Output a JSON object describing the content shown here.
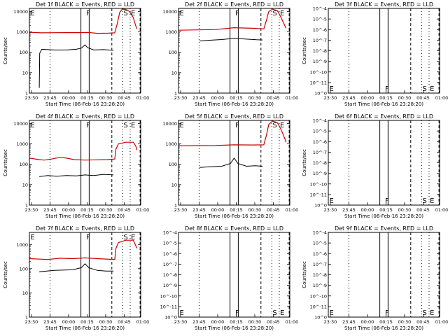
{
  "colors": {
    "events": "#000000",
    "lld": "#cc0000",
    "background": "#ffffff"
  },
  "chart_data": [
    {
      "type": "line",
      "title": "Det 1f BLACK = Events, RED = LLD",
      "xlabel": "Start Time (06-Feb-16 23:28:20)",
      "ylabel": "Counts/sec",
      "scale": "log",
      "yticks": [
        "1",
        "10",
        "100",
        "1000",
        "10000"
      ],
      "xticks": [
        "23:30",
        "23:45",
        "00:00",
        "00:15",
        "00:30",
        "00:45",
        "01:00"
      ],
      "markers": [
        {
          "label": "E",
          "t": 0.25
        },
        {
          "label": "F",
          "t": 45.25
        },
        {
          "label": "S",
          "t": 75.5
        },
        {
          "label": "E",
          "t": 81.5
        }
      ],
      "series": [
        {
          "name": "Events",
          "color": "#000000",
          "points": [
            [
              8,
              1.8
            ],
            [
              8.3,
              90
            ],
            [
              10,
              140
            ],
            [
              20,
              130
            ],
            [
              30,
              130
            ],
            [
              38,
              140
            ],
            [
              42,
              160
            ],
            [
              45,
              230
            ],
            [
              47,
              170
            ],
            [
              52,
              130
            ],
            [
              60,
              135
            ],
            [
              68,
              125
            ]
          ]
        },
        {
          "name": "LLD",
          "color": "#cc0000",
          "points": [
            [
              0,
              950
            ],
            [
              10,
              900
            ],
            [
              20,
              910
            ],
            [
              30,
              920
            ],
            [
              40,
              920
            ],
            [
              48,
              930
            ],
            [
              55,
              850
            ],
            [
              64,
              860
            ],
            [
              69,
              900
            ],
            [
              71,
              2400
            ],
            [
              73,
              9000
            ],
            [
              75,
              13000
            ],
            [
              78,
              12500
            ],
            [
              81,
              10000
            ],
            [
              84,
              5000
            ],
            [
              86,
              2000
            ],
            [
              87,
              1400
            ]
          ]
        }
      ]
    },
    {
      "type": "line",
      "title": "Det 2f BLACK = Events, RED = LLD",
      "xlabel": "Start Time (06-Feb-16 23:28:20)",
      "ylabel": "",
      "scale": "log",
      "yticks": [
        "1",
        "10",
        "100",
        "1000",
        "10000"
      ],
      "xticks": [
        "23:30",
        "23:45",
        "00:00",
        "00:15",
        "00:30",
        "00:45",
        "01:00"
      ],
      "markers": [
        {
          "label": "E",
          "t": 0.25
        },
        {
          "label": "F",
          "t": 45.25
        },
        {
          "label": "S",
          "t": 75.5
        },
        {
          "label": "E",
          "t": 81.5
        }
      ],
      "series": [
        {
          "name": "Events",
          "color": "#000000",
          "points": [
            [
              17,
              360
            ],
            [
              25,
              390
            ],
            [
              35,
              420
            ],
            [
              45,
              480
            ],
            [
              55,
              440
            ],
            [
              63,
              410
            ],
            [
              68,
              400
            ]
          ]
        },
        {
          "name": "LLD",
          "color": "#cc0000",
          "points": [
            [
              0,
              1200
            ],
            [
              15,
              1250
            ],
            [
              30,
              1300
            ],
            [
              45,
              1600
            ],
            [
              60,
              1500
            ],
            [
              69,
              1400
            ],
            [
              71,
              3500
            ],
            [
              73,
              10000
            ],
            [
              76,
              13000
            ],
            [
              80,
              11000
            ],
            [
              83,
              5000
            ],
            [
              86,
              2000
            ],
            [
              87,
              1500
            ]
          ]
        }
      ]
    },
    {
      "type": "line",
      "title": "Det 3f BLACK = Events, RED = LLD",
      "xlabel": "Start Time (06-Feb-16 23:28:20)",
      "ylabel": "Counts/sec",
      "scale": "sci",
      "yticks": [
        "10^0",
        "10^-11",
        "10^-10",
        "10^-9",
        "10^-8",
        "10^-7",
        "10^-6",
        "10^-5",
        "10^-4"
      ],
      "xticks": [
        "23:30",
        "23:45",
        "00:00",
        "00:15",
        "00:30",
        "00:45",
        "01:00"
      ],
      "markers": [
        {
          "label": "E",
          "t": 0.25
        },
        {
          "label": "F",
          "t": 45.25
        },
        {
          "label": "S",
          "t": 75.5
        },
        {
          "label": "E",
          "t": 81.5
        }
      ],
      "series": []
    },
    {
      "type": "line",
      "title": "Det 4f BLACK = Events, RED = LLD",
      "xlabel": "Start Time (06-Feb-16 23:28:20)",
      "ylabel": "Counts/sec",
      "scale": "log",
      "yticks": [
        "1",
        "10",
        "100",
        "1000",
        "10000"
      ],
      "xticks": [
        "23:30",
        "23:45",
        "00:00",
        "00:15",
        "00:30",
        "00:45",
        "01:00"
      ],
      "markers": [
        {
          "label": "E",
          "t": 0.25
        },
        {
          "label": "F",
          "t": 45.25
        },
        {
          "label": "S",
          "t": 75.5
        },
        {
          "label": "E",
          "t": 81.5
        }
      ],
      "series": [
        {
          "name": "Events",
          "color": "#000000",
          "points": [
            [
              8,
              25
            ],
            [
              15,
              28
            ],
            [
              22,
              26
            ],
            [
              30,
              28
            ],
            [
              38,
              27
            ],
            [
              45,
              30
            ],
            [
              52,
              28
            ],
            [
              60,
              32
            ],
            [
              68,
              30
            ]
          ]
        },
        {
          "name": "LLD",
          "color": "#cc0000",
          "points": [
            [
              0,
              200
            ],
            [
              8,
              170
            ],
            [
              12,
              160
            ],
            [
              18,
              180
            ],
            [
              25,
              220
            ],
            [
              30,
              200
            ],
            [
              36,
              170
            ],
            [
              45,
              160
            ],
            [
              55,
              165
            ],
            [
              63,
              170
            ],
            [
              69,
              180
            ],
            [
              70,
              550
            ],
            [
              72,
              1000
            ],
            [
              78,
              1200
            ],
            [
              84,
              1200
            ],
            [
              86,
              800
            ],
            [
              87,
              500
            ]
          ]
        }
      ]
    },
    {
      "type": "line",
      "title": "Det 5f BLACK = Events, RED = LLD",
      "xlabel": "Start Time (06-Feb-16 23:28:20)",
      "ylabel": "",
      "scale": "log",
      "yticks": [
        "1",
        "10",
        "100",
        "1000",
        "10000"
      ],
      "xticks": [
        "23:30",
        "23:45",
        "00:00",
        "00:15",
        "00:30",
        "00:45",
        "01:00"
      ],
      "markers": [
        {
          "label": "E",
          "t": 0.25
        },
        {
          "label": "F",
          "t": 45.25
        },
        {
          "label": "S",
          "t": 75.5
        },
        {
          "label": "E",
          "t": 81.5
        }
      ],
      "series": [
        {
          "name": "Events",
          "color": "#000000",
          "points": [
            [
              17,
              70
            ],
            [
              25,
              75
            ],
            [
              35,
              80
            ],
            [
              42,
              110
            ],
            [
              45,
              200
            ],
            [
              48,
              110
            ],
            [
              55,
              80
            ],
            [
              62,
              85
            ],
            [
              68,
              80
            ]
          ]
        },
        {
          "name": "LLD",
          "color": "#cc0000",
          "points": [
            [
              0,
              800
            ],
            [
              15,
              820
            ],
            [
              30,
              830
            ],
            [
              45,
              900
            ],
            [
              60,
              880
            ],
            [
              69,
              900
            ],
            [
              71,
              2500
            ],
            [
              73,
              9000
            ],
            [
              76,
              13000
            ],
            [
              80,
              11000
            ],
            [
              83,
              5000
            ],
            [
              86,
              1800
            ],
            [
              87,
              1200
            ]
          ]
        }
      ]
    },
    {
      "type": "line",
      "title": "Det 6f BLACK = Events, RED = LLD",
      "xlabel": "Start Time (06-Feb-16 23:28:20)",
      "ylabel": "Counts/sec",
      "scale": "sci",
      "yticks": [
        "10^0",
        "10^-11",
        "10^-10",
        "10^-9",
        "10^-8",
        "10^-7",
        "10^-6",
        "10^-5",
        "10^-4"
      ],
      "xticks": [
        "23:30",
        "23:45",
        "00:00",
        "00:15",
        "00:30",
        "00:45",
        "01:00"
      ],
      "markers": [
        {
          "label": "E",
          "t": 0.25
        },
        {
          "label": "F",
          "t": 45.25
        },
        {
          "label": "S",
          "t": 75.5
        },
        {
          "label": "E",
          "t": 81.5
        }
      ],
      "series": []
    },
    {
      "type": "line",
      "title": "Det 7f BLACK = Events, RED = LLD",
      "xlabel": "Start Time (06-Feb-16 23:28:20)",
      "ylabel": "Counts/sec",
      "scale": "log",
      "yticks": [
        "1",
        "10",
        "100",
        "1000"
      ],
      "xticks": [
        "23:30",
        "23:45",
        "00:00",
        "00:15",
        "00:30",
        "00:45",
        "01:00"
      ],
      "markers": [
        {
          "label": "E",
          "t": 0.25
        },
        {
          "label": "F",
          "t": 45.25
        },
        {
          "label": "S",
          "t": 75.5
        },
        {
          "label": "E",
          "t": 81.5
        }
      ],
      "series": [
        {
          "name": "Events",
          "color": "#000000",
          "points": [
            [
              8,
              75
            ],
            [
              20,
              85
            ],
            [
              35,
              90
            ],
            [
              42,
              110
            ],
            [
              45,
              160
            ],
            [
              48,
              110
            ],
            [
              55,
              85
            ],
            [
              62,
              80
            ],
            [
              68,
              80
            ]
          ]
        },
        {
          "name": "LLD",
          "color": "#cc0000",
          "points": [
            [
              0,
              260
            ],
            [
              15,
              240
            ],
            [
              25,
              270
            ],
            [
              35,
              260
            ],
            [
              45,
              280
            ],
            [
              55,
              260
            ],
            [
              69,
              240
            ],
            [
              70,
              700
            ],
            [
              72,
              1200
            ],
            [
              78,
              1500
            ],
            [
              84,
              1500
            ],
            [
              86,
              900
            ],
            [
              87,
              700
            ]
          ]
        }
      ]
    },
    {
      "type": "line",
      "title": "Det 8f BLACK = Events, RED = LLD",
      "xlabel": "Start Time (06-Feb-16 23:28:20)",
      "ylabel": "",
      "scale": "sci",
      "yticks": [
        "10^0",
        "10^-11",
        "10^-10",
        "10^-9",
        "10^-8",
        "10^-7",
        "10^-6",
        "10^-5",
        "10^-4"
      ],
      "xticks": [
        "23:30",
        "23:45",
        "00:00",
        "00:15",
        "00:30",
        "00:45",
        "01:00"
      ],
      "markers": [
        {
          "label": "E",
          "t": 0.25
        },
        {
          "label": "F",
          "t": 45.25
        },
        {
          "label": "S",
          "t": 75.5
        },
        {
          "label": "E",
          "t": 81.5
        }
      ],
      "series": []
    },
    {
      "type": "line",
      "title": "Det 9f BLACK = Events, RED = LLD",
      "xlabel": "Start Time (06-Feb-16 23:28:20)",
      "ylabel": "Counts/sec",
      "scale": "sci",
      "yticks": [
        "10^0",
        "10^-11",
        "10^-10",
        "10^-9",
        "10^-8",
        "10^-7",
        "10^-6",
        "10^-5",
        "10^-4"
      ],
      "xticks": [
        "23:30",
        "23:45",
        "00:00",
        "00:15",
        "00:30",
        "00:45",
        "01:00"
      ],
      "markers": [
        {
          "label": "E",
          "t": 0.25
        },
        {
          "label": "F",
          "t": 45.25
        },
        {
          "label": "S",
          "t": 75.5
        },
        {
          "label": "E",
          "t": 81.5
        }
      ],
      "series": []
    }
  ]
}
